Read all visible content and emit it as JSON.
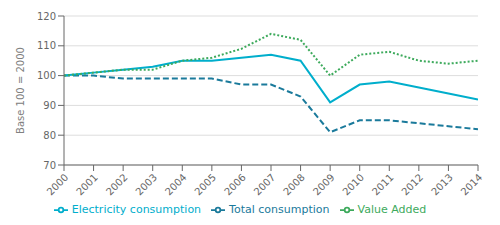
{
  "chart_data": {
    "type": "line",
    "ylabel": "Base 100 = 2000",
    "x": [
      2000,
      2001,
      2002,
      2003,
      2004,
      2005,
      2006,
      2007,
      2008,
      2009,
      2010,
      2011,
      2012,
      2013,
      2014
    ],
    "xlim": [
      2000,
      2014
    ],
    "xticks": [
      2000,
      2001,
      2002,
      2003,
      2004,
      2005,
      2006,
      2007,
      2008,
      2009,
      2010,
      2011,
      2012,
      2013,
      2014
    ],
    "ylim": [
      70,
      120
    ],
    "yticks": [
      70,
      80,
      90,
      100,
      110,
      120
    ],
    "grid": true,
    "legend": "bottom",
    "series": [
      {
        "name": "Total consumption",
        "color": "#1A7A9B",
        "line_style": "dashed",
        "values": [
          100,
          100,
          99,
          99,
          99,
          99,
          97,
          97,
          93,
          81,
          85,
          85,
          84,
          83,
          82
        ]
      },
      {
        "name": "Electricity consumption",
        "color": "#00AECC",
        "line_style": "solid",
        "values": [
          100,
          101,
          102,
          103,
          105,
          105,
          106,
          107,
          105,
          91,
          97,
          98,
          96,
          94,
          92
        ]
      },
      {
        "name": "Value Added",
        "color": "#3DAA5C",
        "line_style": "dotted",
        "values": [
          100,
          101,
          102,
          102,
          105,
          106,
          109,
          114,
          112,
          100,
          107,
          108,
          105,
          104,
          105
        ]
      }
    ]
  }
}
